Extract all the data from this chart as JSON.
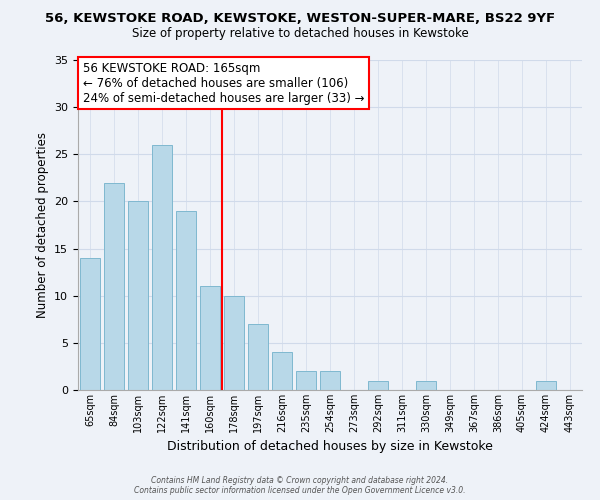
{
  "title1": "56, KEWSTOKE ROAD, KEWSTOKE, WESTON-SUPER-MARE, BS22 9YF",
  "title2": "Size of property relative to detached houses in Kewstoke",
  "xlabel": "Distribution of detached houses by size in Kewstoke",
  "ylabel": "Number of detached properties",
  "bar_labels": [
    "65sqm",
    "84sqm",
    "103sqm",
    "122sqm",
    "141sqm",
    "160sqm",
    "178sqm",
    "197sqm",
    "216sqm",
    "235sqm",
    "254sqm",
    "273sqm",
    "292sqm",
    "311sqm",
    "330sqm",
    "349sqm",
    "367sqm",
    "386sqm",
    "405sqm",
    "424sqm",
    "443sqm"
  ],
  "bar_values": [
    14,
    22,
    20,
    26,
    19,
    11,
    10,
    7,
    4,
    2,
    2,
    0,
    1,
    0,
    1,
    0,
    0,
    0,
    0,
    1,
    0
  ],
  "bar_color": "#b8d8e8",
  "bar_edge_color": "#7fb8d0",
  "vline_x": 5.5,
  "vline_color": "red",
  "annotation_title": "56 KEWSTOKE ROAD: 165sqm",
  "annotation_line1": "← 76% of detached houses are smaller (106)",
  "annotation_line2": "24% of semi-detached houses are larger (33) →",
  "ylim": [
    0,
    35
  ],
  "yticks": [
    0,
    5,
    10,
    15,
    20,
    25,
    30,
    35
  ],
  "footer1": "Contains HM Land Registry data © Crown copyright and database right 2024.",
  "footer2": "Contains public sector information licensed under the Open Government Licence v3.0.",
  "bg_color": "#eef2f8",
  "grid_color": "#d0daea"
}
